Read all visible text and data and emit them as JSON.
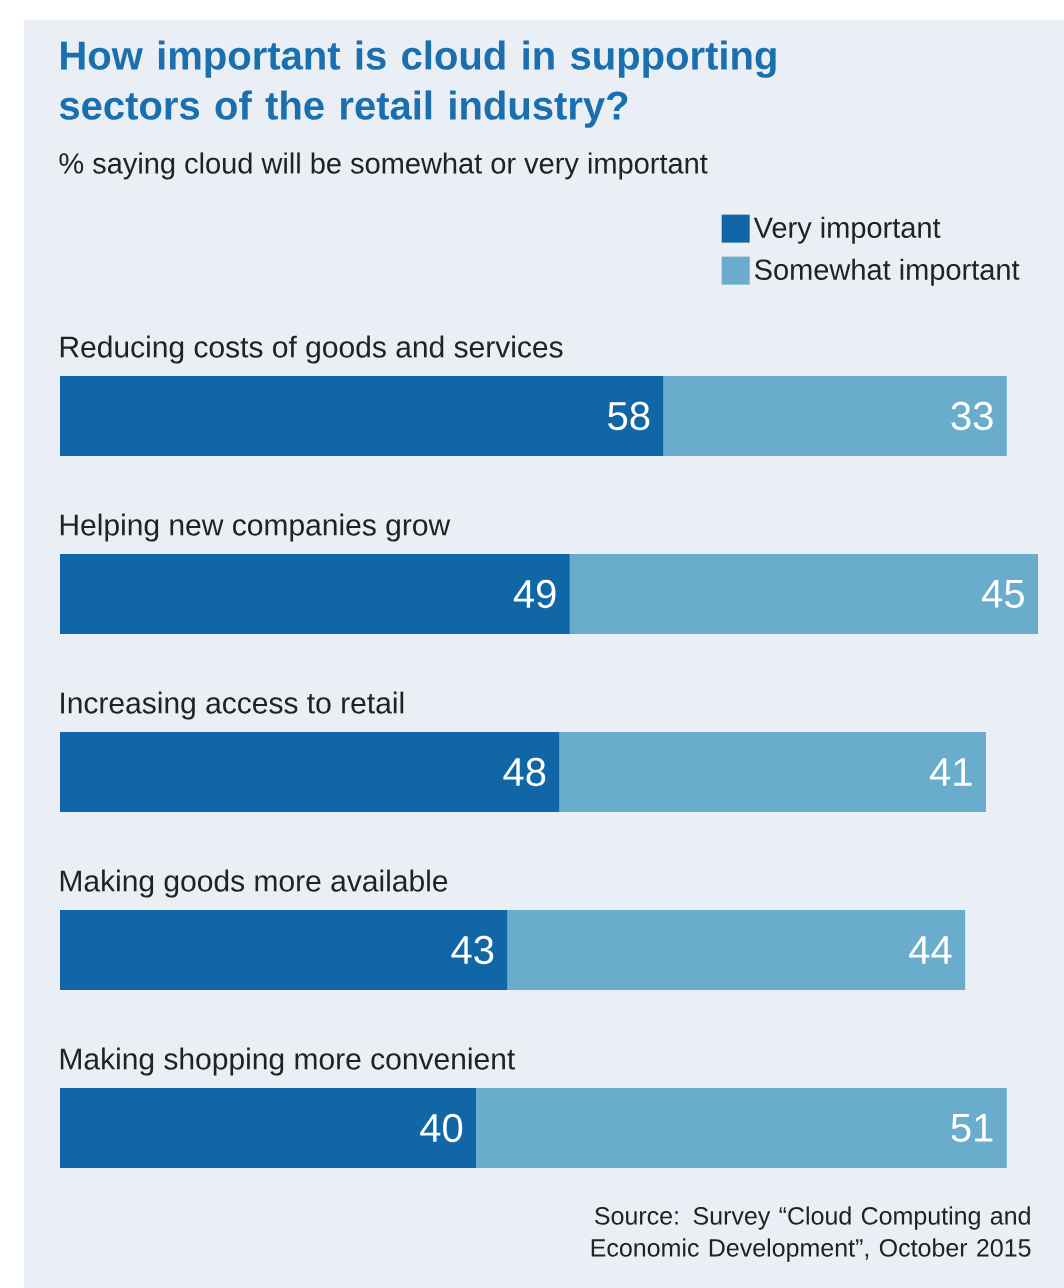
{
  "chart_data": {
    "type": "bar",
    "orientation": "horizontal",
    "stacked": true,
    "title": "How important is cloud in supporting sectors of the retail industry?",
    "subtitle": "% saying cloud will be somewhat or very important",
    "categories": [
      "Reducing costs of goods and services",
      "Helping new companies grow",
      "Increasing access to retail",
      "Making goods more available",
      "Making shopping more convenient"
    ],
    "series": [
      {
        "name": "Very important",
        "color": "#1166a6",
        "values": [
          58,
          49,
          48,
          43,
          40
        ]
      },
      {
        "name": "Somewhat important",
        "color": "#6aaccb",
        "values": [
          33,
          45,
          41,
          44,
          51
        ]
      }
    ],
    "data_labels": true,
    "legend": "top right",
    "annotations": [
      "Source: Survey “Cloud Computing and Economic Development”, October 2015"
    ]
  }
}
